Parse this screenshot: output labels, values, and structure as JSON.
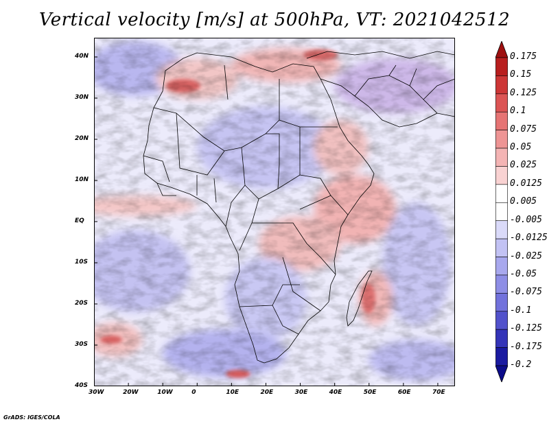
{
  "title": "Vertical velocity [m/s] at 500hPa, VT: 2021042512",
  "credit": "GrADS: IGES/COLA",
  "map": {
    "region": "Africa",
    "lon_labels": [
      "30W",
      "20W",
      "10W",
      "0",
      "10E",
      "20E",
      "30E",
      "40E",
      "50E",
      "60E",
      "70E"
    ],
    "lat_labels": [
      "40N",
      "30N",
      "20N",
      "10N",
      "EQ",
      "10S",
      "20S",
      "30S",
      "40S"
    ]
  },
  "colorbar": {
    "labels": [
      "0.175",
      "0.15",
      "0.125",
      "0.1",
      "0.075",
      "0.05",
      "0.025",
      "0.0125",
      "0.005",
      "-0.005",
      "-0.0125",
      "-0.025",
      "-0.05",
      "-0.075",
      "-0.1",
      "-0.125",
      "-0.175",
      "-0.2"
    ],
    "colors": [
      "#9e1010",
      "#b81e1e",
      "#cd3636",
      "#dc5454",
      "#e67474",
      "#ee9494",
      "#f4b4b4",
      "#f9d2d2",
      "#ffffff",
      "#ffffff",
      "#dadaf9",
      "#c2c2f4",
      "#a8a8ee",
      "#8e8ee6",
      "#7272dc",
      "#5252cc",
      "#3434b8",
      "#1a1aa0",
      "#0c0c8a"
    ]
  }
}
